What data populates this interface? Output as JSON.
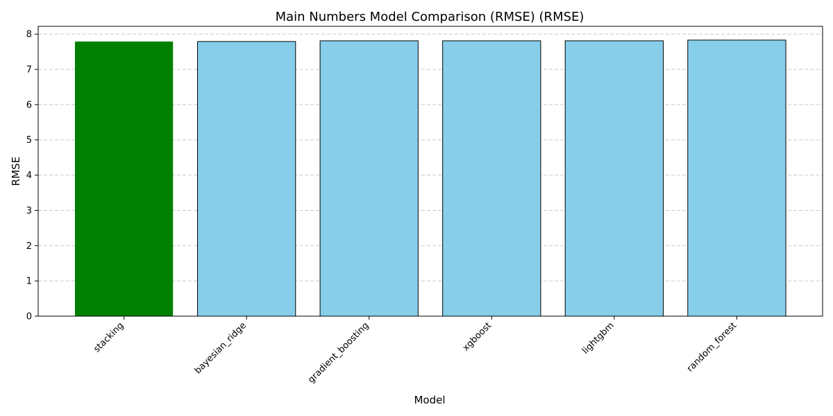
{
  "chart_data": {
    "type": "bar",
    "title": "Main Numbers Model Comparison (RMSE) (RMSE)",
    "xlabel": "Model",
    "ylabel": "RMSE",
    "categories": [
      "stacking",
      "bayesian_ridge",
      "gradient_boosting",
      "xgboost",
      "lightgbm",
      "random_forest"
    ],
    "values": [
      7.79,
      7.79,
      7.81,
      7.81,
      7.81,
      7.83
    ],
    "ylim": [
      0,
      8.22
    ],
    "yticks": [
      "0",
      "1",
      "2",
      "3",
      "4",
      "5",
      "6",
      "7",
      "8"
    ],
    "grid": "y-dashed",
    "legend": "none",
    "colors": {
      "highlight": "#008000",
      "default": "#87ceeb",
      "edge": "#000000",
      "grid": "#c8c8c8"
    }
  }
}
